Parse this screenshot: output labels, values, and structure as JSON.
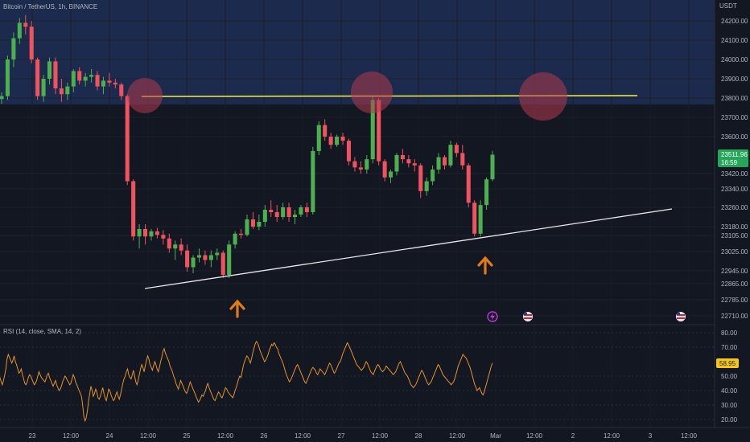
{
  "header": {
    "symbol_legend": "Bitcoin / TetherUS, 1h, BINANCE",
    "currency": "USDT"
  },
  "rsi_legend": "RSI (14, close, SMA, 14, 2)",
  "colors": {
    "background": "#131722",
    "resistance_zone": "#1c2a4d",
    "bull": "#26a69a",
    "bull_bright": "#4caf50",
    "bear": "#f0525f",
    "resistance_line": "#f5f04a",
    "support_line": "#e8e8e8",
    "arrow": "#e07b16",
    "circle": "#b23a4c",
    "rsi_line": "#e3932a",
    "last_price_badge": "#26a65b",
    "rsi_badge": "#f5c518"
  },
  "icons": [
    "lightning-icon",
    "us-flag-icon",
    "us-flag-icon"
  ],
  "chart_data": [
    {
      "type": "candlestick",
      "y_ticks": [
        "24200.00",
        "24100.00",
        "24000.00",
        "23900.00",
        "23800.00",
        "23700.00",
        "23600.00",
        "23420.00",
        "23340.00",
        "23260.00",
        "23180.00",
        "23105.00",
        "23025.00",
        "22945.00",
        "22865.00",
        "22785.00",
        "22710.00"
      ],
      "x_ticks": [
        "23",
        "12:00",
        "24",
        "12:00",
        "25",
        "12:00",
        "26",
        "12:00",
        "27",
        "12:00",
        "28",
        "12:00",
        "Mar",
        "12:00",
        "2",
        "12:00",
        "3",
        "12:00"
      ],
      "last_price": "23511.96",
      "countdown": "16:59",
      "resistance_level": 23810,
      "support_line": {
        "start": [
          "24 12:00",
          22880
        ],
        "end": [
          "3 12:00",
          23240
        ]
      },
      "ohlc": [
        [
          23795,
          23830,
          23770,
          23810
        ],
        [
          23810,
          24020,
          23790,
          24000
        ],
        [
          24000,
          24140,
          23960,
          24110
        ],
        [
          24110,
          24215,
          24080,
          24190
        ],
        [
          24190,
          24230,
          24130,
          24170
        ],
        [
          24170,
          24200,
          23980,
          24000
        ],
        [
          24000,
          24010,
          23790,
          23810
        ],
        [
          23810,
          23920,
          23780,
          23900
        ],
        [
          23900,
          24010,
          23870,
          23990
        ],
        [
          23990,
          24010,
          23820,
          23850
        ],
        [
          23850,
          23900,
          23780,
          23820
        ],
        [
          23820,
          23880,
          23790,
          23860
        ],
        [
          23860,
          23950,
          23830,
          23940
        ],
        [
          23940,
          23960,
          23870,
          23890
        ],
        [
          23890,
          23930,
          23860,
          23910
        ],
        [
          23910,
          23950,
          23880,
          23920
        ],
        [
          23920,
          23940,
          23840,
          23860
        ],
        [
          23860,
          23910,
          23820,
          23890
        ],
        [
          23890,
          23930,
          23860,
          23880
        ],
        [
          23880,
          23900,
          23850,
          23870
        ],
        [
          23870,
          23880,
          23790,
          23810
        ],
        [
          23810,
          23820,
          23360,
          23380
        ],
        [
          23380,
          23390,
          23080,
          23100
        ],
        [
          23100,
          23190,
          23040,
          23160
        ],
        [
          23160,
          23190,
          23060,
          23100
        ],
        [
          23100,
          23160,
          23080,
          23140
        ],
        [
          23140,
          23170,
          23090,
          23110
        ],
        [
          23110,
          23150,
          23060,
          23090
        ],
        [
          23090,
          23120,
          23020,
          23040
        ],
        [
          23040,
          23080,
          22990,
          23060
        ],
        [
          23060,
          23090,
          23010,
          23030
        ],
        [
          23030,
          23060,
          22940,
          22960
        ],
        [
          22960,
          23010,
          22930,
          23000
        ],
        [
          23000,
          23040,
          22980,
          23010
        ],
        [
          23010,
          23030,
          22970,
          22990
        ],
        [
          22990,
          23030,
          22960,
          23010
        ],
        [
          23010,
          23040,
          22990,
          23020
        ],
        [
          23020,
          23030,
          22900,
          22920
        ],
        [
          22920,
          23080,
          22900,
          23060
        ],
        [
          23060,
          23140,
          23040,
          23120
        ],
        [
          23120,
          23160,
          23090,
          23110
        ],
        [
          23110,
          23230,
          23100,
          23210
        ],
        [
          23210,
          23240,
          23160,
          23180
        ],
        [
          23180,
          23230,
          23150,
          23200
        ],
        [
          23200,
          23270,
          23180,
          23250
        ],
        [
          23250,
          23290,
          23220,
          23240
        ],
        [
          23240,
          23270,
          23200,
          23220
        ],
        [
          23220,
          23280,
          23210,
          23260
        ],
        [
          23260,
          23280,
          23200,
          23220
        ],
        [
          23220,
          23250,
          23190,
          23230
        ],
        [
          23230,
          23270,
          23220,
          23260
        ],
        [
          23260,
          23280,
          23220,
          23240
        ],
        [
          23240,
          23550,
          23230,
          23530
        ],
        [
          23530,
          23680,
          23510,
          23660
        ],
        [
          23660,
          23690,
          23580,
          23600
        ],
        [
          23600,
          23620,
          23540,
          23560
        ],
        [
          23560,
          23610,
          23550,
          23600
        ],
        [
          23600,
          23620,
          23560,
          23580
        ],
        [
          23580,
          23590,
          23460,
          23480
        ],
        [
          23480,
          23500,
          23430,
          23450
        ],
        [
          23450,
          23480,
          23420,
          23440
        ],
        [
          23440,
          23510,
          23420,
          23490
        ],
        [
          23490,
          23810,
          23470,
          23790
        ],
        [
          23790,
          23800,
          23460,
          23480
        ],
        [
          23480,
          23490,
          23380,
          23400
        ],
        [
          23400,
          23440,
          23370,
          23430
        ],
        [
          23430,
          23520,
          23410,
          23510
        ],
        [
          23510,
          23540,
          23470,
          23490
        ],
        [
          23490,
          23510,
          23450,
          23470
        ],
        [
          23470,
          23490,
          23430,
          23460
        ],
        [
          23460,
          23470,
          23300,
          23330
        ],
        [
          23330,
          23400,
          23310,
          23380
        ],
        [
          23380,
          23460,
          23360,
          23440
        ],
        [
          23440,
          23520,
          23420,
          23500
        ],
        [
          23500,
          23510,
          23440,
          23460
        ],
        [
          23460,
          23580,
          23450,
          23560
        ],
        [
          23560,
          23570,
          23500,
          23520
        ],
        [
          23520,
          23560,
          23440,
          23460
        ],
        [
          23460,
          23470,
          23260,
          23280
        ],
        [
          23280,
          23290,
          23100,
          23120
        ],
        [
          23120,
          23290,
          23100,
          23270
        ],
        [
          23270,
          23400,
          23250,
          23390
        ],
        [
          23390,
          23530,
          23380,
          23512
        ]
      ]
    },
    {
      "type": "line",
      "name": "RSI",
      "y_ticks": [
        "80.00",
        "70.00",
        "50.00",
        "40.00",
        "30.00",
        "20.00"
      ],
      "current_value": "58.95",
      "ylim": [
        15,
        85
      ],
      "values": [
        49,
        46,
        44,
        47,
        51,
        55,
        62,
        65,
        63,
        61,
        59,
        61,
        64,
        60,
        58,
        55,
        52,
        53,
        55,
        51,
        48,
        45,
        44,
        46,
        49,
        51,
        50,
        48,
        46,
        44,
        45,
        47,
        50,
        53,
        51,
        49,
        48,
        47,
        46,
        48,
        51,
        52,
        49,
        47,
        45,
        43,
        45,
        47,
        44,
        42,
        40,
        41,
        43,
        46,
        48,
        50,
        49,
        47,
        46,
        44,
        45,
        48,
        51,
        49,
        46,
        44,
        42,
        40,
        38,
        36,
        30,
        22,
        19,
        21,
        26,
        33,
        38,
        43,
        40,
        36,
        38,
        41,
        39,
        35,
        34,
        36,
        39,
        42,
        38,
        35,
        33,
        37,
        41,
        40,
        37,
        35,
        33,
        34,
        37,
        39,
        36,
        34,
        37,
        41,
        45,
        48,
        50,
        53,
        55,
        51,
        49,
        48,
        51,
        54,
        50,
        46,
        44,
        47,
        51,
        55,
        58,
        56,
        53,
        57,
        61,
        64,
        62,
        58,
        56,
        54,
        57,
        60,
        58,
        55,
        53,
        56,
        60,
        63,
        67,
        69,
        66,
        64,
        62,
        60,
        57,
        55,
        53,
        50,
        48,
        45,
        43,
        41,
        44,
        47,
        45,
        43,
        41,
        39,
        38,
        40,
        43,
        46,
        44,
        42,
        40,
        38,
        36,
        34,
        32,
        33,
        35,
        37,
        36,
        38,
        40,
        43,
        45,
        42,
        40,
        38,
        36,
        34,
        33,
        35,
        37,
        39,
        38,
        36,
        35,
        37,
        40,
        42,
        41,
        39,
        38,
        37,
        36,
        35,
        37,
        40,
        42,
        45,
        48,
        50,
        49,
        53,
        57,
        60,
        62,
        64,
        63,
        61,
        59,
        62,
        66,
        69,
        72,
        74,
        73,
        71,
        68,
        66,
        64,
        62,
        60,
        61,
        63,
        65,
        68,
        70,
        72,
        71,
        73,
        72,
        70,
        69,
        66,
        64,
        62,
        60,
        58,
        55,
        52,
        50,
        48,
        46,
        47,
        49,
        51,
        53,
        55,
        57,
        58,
        56,
        54,
        52,
        50,
        48,
        46,
        45,
        47,
        49,
        51,
        53,
        55,
        56,
        55,
        54,
        52,
        51,
        53,
        55,
        54,
        53,
        52,
        51,
        53,
        55,
        57,
        59,
        58,
        56,
        54,
        52,
        53,
        55,
        57,
        59,
        60,
        62,
        65,
        67,
        69,
        71,
        73,
        72,
        70,
        68,
        66,
        64,
        62,
        60,
        58,
        57,
        56,
        55,
        54,
        55,
        56,
        58,
        60,
        59,
        57,
        55,
        53,
        52,
        51,
        53,
        55,
        57,
        58,
        57,
        55,
        54,
        53,
        54,
        55,
        57,
        56,
        55,
        54,
        53,
        52,
        51,
        52,
        53,
        55,
        57,
        59,
        60,
        58,
        56,
        54,
        52,
        51,
        50,
        48,
        46,
        44,
        43,
        42,
        43,
        44,
        46,
        48,
        50,
        52,
        54,
        53,
        51,
        49,
        47,
        45,
        44,
        45,
        46,
        48,
        50,
        52,
        54,
        56,
        58,
        57,
        55,
        53,
        51,
        50,
        49,
        48,
        47,
        46,
        45,
        44,
        45,
        46,
        48,
        51,
        54,
        57,
        59,
        61,
        63,
        65,
        64,
        63,
        62,
        60,
        58,
        56,
        53,
        50,
        47,
        44,
        42,
        40,
        41,
        42,
        40,
        38,
        37,
        39,
        42,
        45,
        48,
        51,
        54,
        57,
        59
      ]
    }
  ]
}
